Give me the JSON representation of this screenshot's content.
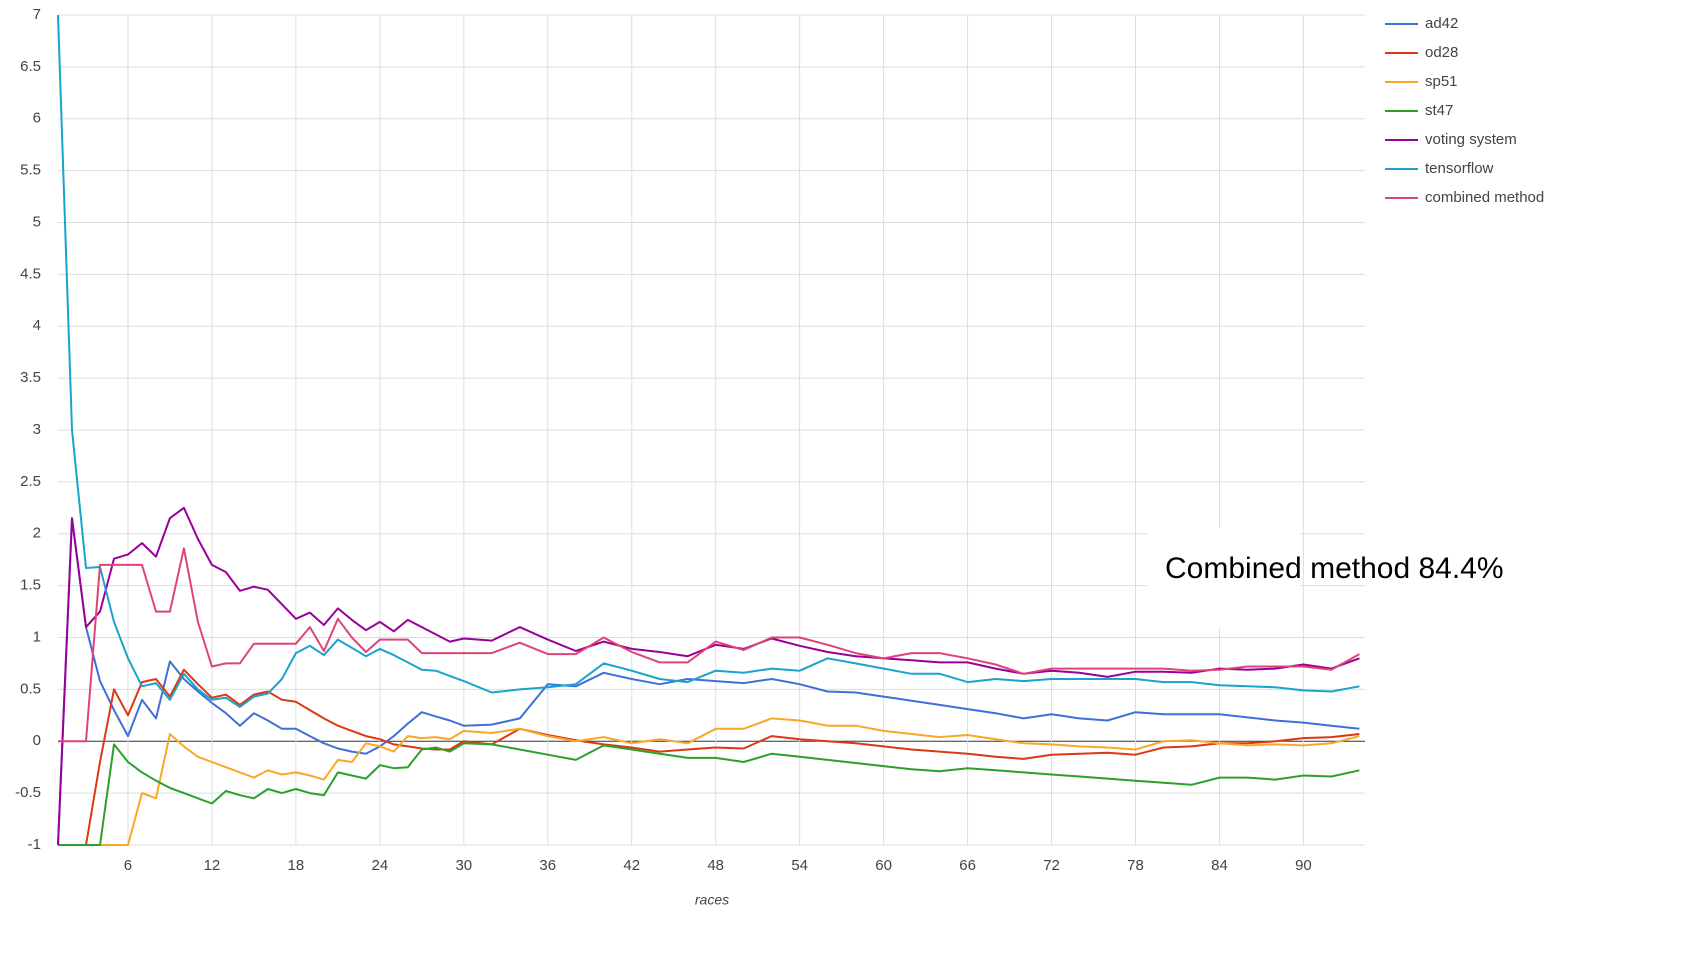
{
  "chart_data": {
    "type": "line",
    "xlabel": "races",
    "annotation": "Combined method 84.4%",
    "x": [
      1,
      2,
      3,
      4,
      5,
      6,
      7,
      8,
      9,
      10,
      11,
      12,
      13,
      14,
      15,
      16,
      17,
      18,
      19,
      20,
      21,
      22,
      23,
      24,
      25,
      26,
      27,
      28,
      29,
      30,
      32,
      34,
      36,
      38,
      40,
      42,
      44,
      46,
      48,
      50,
      52,
      54,
      56,
      58,
      60,
      62,
      64,
      66,
      68,
      70,
      72,
      74,
      76,
      78,
      80,
      82,
      84,
      86,
      88,
      90,
      92,
      94
    ],
    "xlim": [
      1,
      94.4
    ],
    "xticks": [
      6,
      12,
      18,
      24,
      30,
      36,
      42,
      48,
      54,
      60,
      66,
      72,
      78,
      84,
      90
    ],
    "ylim": [
      -1,
      7
    ],
    "yticks": [
      -1,
      -0.5,
      0,
      0.5,
      1,
      1.5,
      2,
      2.5,
      3,
      3.5,
      4,
      4.5,
      5,
      5.5,
      6,
      6.5,
      7
    ],
    "grid": true,
    "legend": "right",
    "series": [
      {
        "name": "ad42",
        "color": "#3f6fd8",
        "values": [
          -1,
          2.15,
          1.1,
          0.58,
          0.3,
          0.05,
          0.4,
          0.22,
          0.77,
          0.6,
          0.48,
          0.37,
          0.27,
          0.15,
          0.27,
          0.2,
          0.12,
          0.12,
          0.05,
          -0.02,
          -0.07,
          -0.1,
          -0.12,
          -0.05,
          0.05,
          0.17,
          0.28,
          0.24,
          0.2,
          0.15,
          0.16,
          0.22,
          0.55,
          0.53,
          0.66,
          0.6,
          0.55,
          0.6,
          0.58,
          0.56,
          0.6,
          0.55,
          0.48,
          0.47,
          0.43,
          0.39,
          0.35,
          0.31,
          0.27,
          0.22,
          0.26,
          0.22,
          0.2,
          0.28,
          0.26,
          0.26,
          0.26,
          0.23,
          0.2,
          0.18,
          0.15,
          0.12
        ]
      },
      {
        "name": "od28",
        "color": "#dc3912",
        "values": [
          -1,
          -1,
          -1,
          -0.2,
          0.5,
          0.25,
          0.57,
          0.6,
          0.43,
          0.69,
          0.55,
          0.42,
          0.45,
          0.35,
          0.45,
          0.48,
          0.4,
          0.38,
          0.3,
          0.22,
          0.15,
          0.1,
          0.05,
          0.02,
          -0.03,
          -0.05,
          -0.07,
          -0.08,
          -0.08,
          0,
          -0.03,
          0.12,
          0.06,
          0.01,
          -0.03,
          -0.06,
          -0.1,
          -0.08,
          -0.06,
          -0.07,
          0.05,
          0.02,
          0,
          -0.02,
          -0.05,
          -0.08,
          -0.1,
          -0.12,
          -0.15,
          -0.17,
          -0.13,
          -0.12,
          -0.11,
          -0.13,
          -0.06,
          -0.05,
          -0.02,
          -0.02,
          0,
          0.03,
          0.04,
          0.07
        ]
      },
      {
        "name": "sp51",
        "color": "#f9a825",
        "values": [
          -1,
          -1,
          -1,
          -1,
          -1,
          -1,
          -0.5,
          -0.55,
          0.07,
          -0.05,
          -0.15,
          -0.2,
          -0.25,
          -0.3,
          -0.35,
          -0.28,
          -0.32,
          -0.3,
          -0.33,
          -0.37,
          -0.18,
          -0.2,
          -0.02,
          -0.05,
          -0.1,
          0.05,
          0.03,
          0.04,
          0.02,
          0.1,
          0.08,
          0.12,
          0.05,
          0,
          0.04,
          -0.02,
          0.02,
          -0.02,
          0.12,
          0.12,
          0.22,
          0.2,
          0.15,
          0.15,
          0.1,
          0.07,
          0.04,
          0.06,
          0.02,
          -0.02,
          -0.03,
          -0.05,
          -0.06,
          -0.08,
          0,
          0.01,
          -0.02,
          -0.04,
          -0.03,
          -0.04,
          -0.02,
          0.05
        ]
      },
      {
        "name": "st47",
        "color": "#2ca02c",
        "values": [
          -1,
          -1,
          -1,
          -1,
          -0.03,
          -0.2,
          -0.3,
          -0.38,
          -0.45,
          -0.5,
          -0.55,
          -0.6,
          -0.48,
          -0.52,
          -0.55,
          -0.46,
          -0.5,
          -0.46,
          -0.5,
          -0.52,
          -0.3,
          -0.33,
          -0.36,
          -0.23,
          -0.26,
          -0.25,
          -0.08,
          -0.06,
          -0.1,
          -0.02,
          -0.03,
          -0.08,
          -0.13,
          -0.18,
          -0.04,
          -0.08,
          -0.12,
          -0.16,
          -0.16,
          -0.2,
          -0.12,
          -0.15,
          -0.18,
          -0.21,
          -0.24,
          -0.27,
          -0.29,
          -0.26,
          -0.28,
          -0.3,
          -0.32,
          -0.34,
          -0.36,
          -0.38,
          -0.4,
          -0.42,
          -0.35,
          -0.35,
          -0.37,
          -0.33,
          -0.34,
          -0.28
        ]
      },
      {
        "name": "voting system",
        "color": "#990099",
        "values": [
          -1,
          2.15,
          1.1,
          1.25,
          1.76,
          1.8,
          1.91,
          1.78,
          2.15,
          2.25,
          1.95,
          1.7,
          1.63,
          1.45,
          1.49,
          1.46,
          1.32,
          1.18,
          1.24,
          1.12,
          1.28,
          1.17,
          1.07,
          1.15,
          1.06,
          1.17,
          1.1,
          1.03,
          0.96,
          0.99,
          0.97,
          1.1,
          0.98,
          0.87,
          0.96,
          0.89,
          0.86,
          0.82,
          0.93,
          0.89,
          0.99,
          0.92,
          0.86,
          0.82,
          0.8,
          0.78,
          0.76,
          0.76,
          0.7,
          0.65,
          0.68,
          0.66,
          0.62,
          0.67,
          0.67,
          0.66,
          0.7,
          0.69,
          0.7,
          0.74,
          0.7,
          0.8
        ]
      },
      {
        "name": "tensorflow",
        "color": "#1aa3cc",
        "values": [
          7,
          3.0,
          1.67,
          1.68,
          1.15,
          0.8,
          0.53,
          0.56,
          0.4,
          0.65,
          0.5,
          0.4,
          0.42,
          0.33,
          0.43,
          0.46,
          0.6,
          0.85,
          0.92,
          0.83,
          0.98,
          0.9,
          0.82,
          0.89,
          0.83,
          0.76,
          0.69,
          0.68,
          0.63,
          0.58,
          0.47,
          0.5,
          0.52,
          0.55,
          0.75,
          0.68,
          0.6,
          0.57,
          0.68,
          0.66,
          0.7,
          0.68,
          0.8,
          0.75,
          0.7,
          0.65,
          0.65,
          0.57,
          0.6,
          0.58,
          0.6,
          0.6,
          0.6,
          0.6,
          0.57,
          0.57,
          0.54,
          0.53,
          0.52,
          0.49,
          0.48,
          0.53
        ]
      },
      {
        "name": "combined method",
        "color": "#dd4477",
        "values": [
          0,
          0,
          0,
          1.7,
          1.7,
          1.7,
          1.7,
          1.25,
          1.25,
          1.86,
          1.15,
          0.72,
          0.75,
          0.75,
          0.94,
          0.94,
          0.94,
          0.94,
          1.1,
          0.87,
          1.18,
          1.0,
          0.86,
          0.98,
          0.98,
          0.98,
          0.85,
          0.85,
          0.85,
          0.85,
          0.85,
          0.95,
          0.84,
          0.84,
          1.0,
          0.86,
          0.76,
          0.76,
          0.96,
          0.88,
          1.0,
          1.0,
          0.93,
          0.85,
          0.8,
          0.85,
          0.85,
          0.8,
          0.74,
          0.65,
          0.7,
          0.7,
          0.7,
          0.7,
          0.7,
          0.68,
          0.69,
          0.72,
          0.72,
          0.72,
          0.69,
          0.84
        ]
      }
    ]
  }
}
